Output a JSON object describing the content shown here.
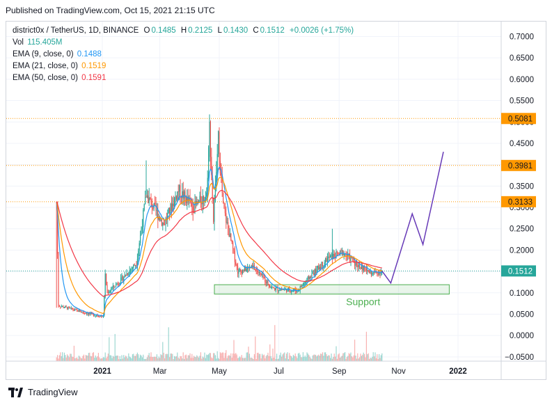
{
  "header": {
    "published": "Published on TradingView.com, Oct 15, 2021 21:15 UTC"
  },
  "legend": {
    "symbol": "district0x / TetherUS, 1D, BINANCE",
    "open_label": "O",
    "open": "0.1485",
    "high_label": "H",
    "high": "0.2125",
    "low_label": "L",
    "low": "0.1430",
    "close_label": "C",
    "close": "0.1512",
    "change": "+0.0026 (+1.75%)",
    "vol_label": "Vol",
    "vol": "115.405M",
    "ema9_label": "EMA (9, close, 0)",
    "ema9": "0.1488",
    "ema21_label": "EMA (21, close, 0)",
    "ema21": "0.1519",
    "ema50_label": "EMA (50, close, 0)",
    "ema50": "0.1591"
  },
  "colors": {
    "up": "#26a69a",
    "down": "#ef5350",
    "ema9": "#2196f3",
    "ema21": "#ff9800",
    "ema50": "#f23645",
    "projection": "#673ab7",
    "support": "#4caf50",
    "level": "#ff9800"
  },
  "footer": {
    "brand": "TradingView"
  },
  "chart_data": {
    "type": "candlestick",
    "y_ticks": [
      "0.7000",
      "0.6500",
      "0.6000",
      "0.5500",
      "0.5000",
      "0.4500",
      "0.4000",
      "0.3500",
      "0.3000",
      "0.2500",
      "0.2000",
      "0.1500",
      "0.1000",
      "0.0500",
      "0.0000",
      "−0.0500"
    ],
    "x_ticks": [
      "2021",
      "Mar",
      "May",
      "Jul",
      "Sep",
      "Nov",
      "2022"
    ],
    "ylim": [
      -0.06,
      0.735
    ],
    "price_levels": [
      {
        "value": 0.5081,
        "label": "0.5081"
      },
      {
        "value": 0.3981,
        "label": "0.3981"
      },
      {
        "value": 0.3133,
        "label": "0.3133"
      }
    ],
    "last_price": {
      "value": 0.1512,
      "label": "0.1512"
    },
    "support_zone": {
      "label": "Support",
      "low": 0.097,
      "high": 0.119,
      "from": "2021-04-26",
      "to": "2021-12-23"
    },
    "projection": [
      {
        "date": "2021-10-15",
        "price": 0.1512
      },
      {
        "date": "2021-10-24",
        "price": 0.123
      },
      {
        "date": "2021-11-15",
        "price": 0.285
      },
      {
        "date": "2021-11-26",
        "price": 0.213
      },
      {
        "date": "2021-12-17",
        "price": 0.43
      }
    ],
    "price_path": [
      {
        "date": "2020-11-15",
        "price": 0.3133
      },
      {
        "date": "2020-11-17",
        "price": 0.07
      },
      {
        "date": "2020-12-20",
        "price": 0.05
      },
      {
        "date": "2021-01-02",
        "price": 0.045
      },
      {
        "date": "2021-01-04",
        "price": 0.14
      },
      {
        "date": "2021-01-06",
        "price": 0.1
      },
      {
        "date": "2021-01-20",
        "price": 0.13
      },
      {
        "date": "2021-02-05",
        "price": 0.17
      },
      {
        "date": "2021-02-15",
        "price": 0.33
      },
      {
        "date": "2021-02-20",
        "price": 0.31
      },
      {
        "date": "2021-03-05",
        "price": 0.26
      },
      {
        "date": "2021-03-20",
        "price": 0.34
      },
      {
        "date": "2021-04-05",
        "price": 0.3
      },
      {
        "date": "2021-04-18",
        "price": 0.33
      },
      {
        "date": "2021-04-21",
        "price": 0.49
      },
      {
        "date": "2021-04-25",
        "price": 0.27
      },
      {
        "date": "2021-04-30",
        "price": 0.46
      },
      {
        "date": "2021-05-05",
        "price": 0.3
      },
      {
        "date": "2021-05-20",
        "price": 0.15
      },
      {
        "date": "2021-06-05",
        "price": 0.16
      },
      {
        "date": "2021-06-25",
        "price": 0.11
      },
      {
        "date": "2021-07-20",
        "price": 0.105
      },
      {
        "date": "2021-08-05",
        "price": 0.145
      },
      {
        "date": "2021-08-20",
        "price": 0.18
      },
      {
        "date": "2021-09-05",
        "price": 0.195
      },
      {
        "date": "2021-09-20",
        "price": 0.165
      },
      {
        "date": "2021-10-05",
        "price": 0.145
      },
      {
        "date": "2021-10-15",
        "price": 0.1512
      }
    ]
  }
}
